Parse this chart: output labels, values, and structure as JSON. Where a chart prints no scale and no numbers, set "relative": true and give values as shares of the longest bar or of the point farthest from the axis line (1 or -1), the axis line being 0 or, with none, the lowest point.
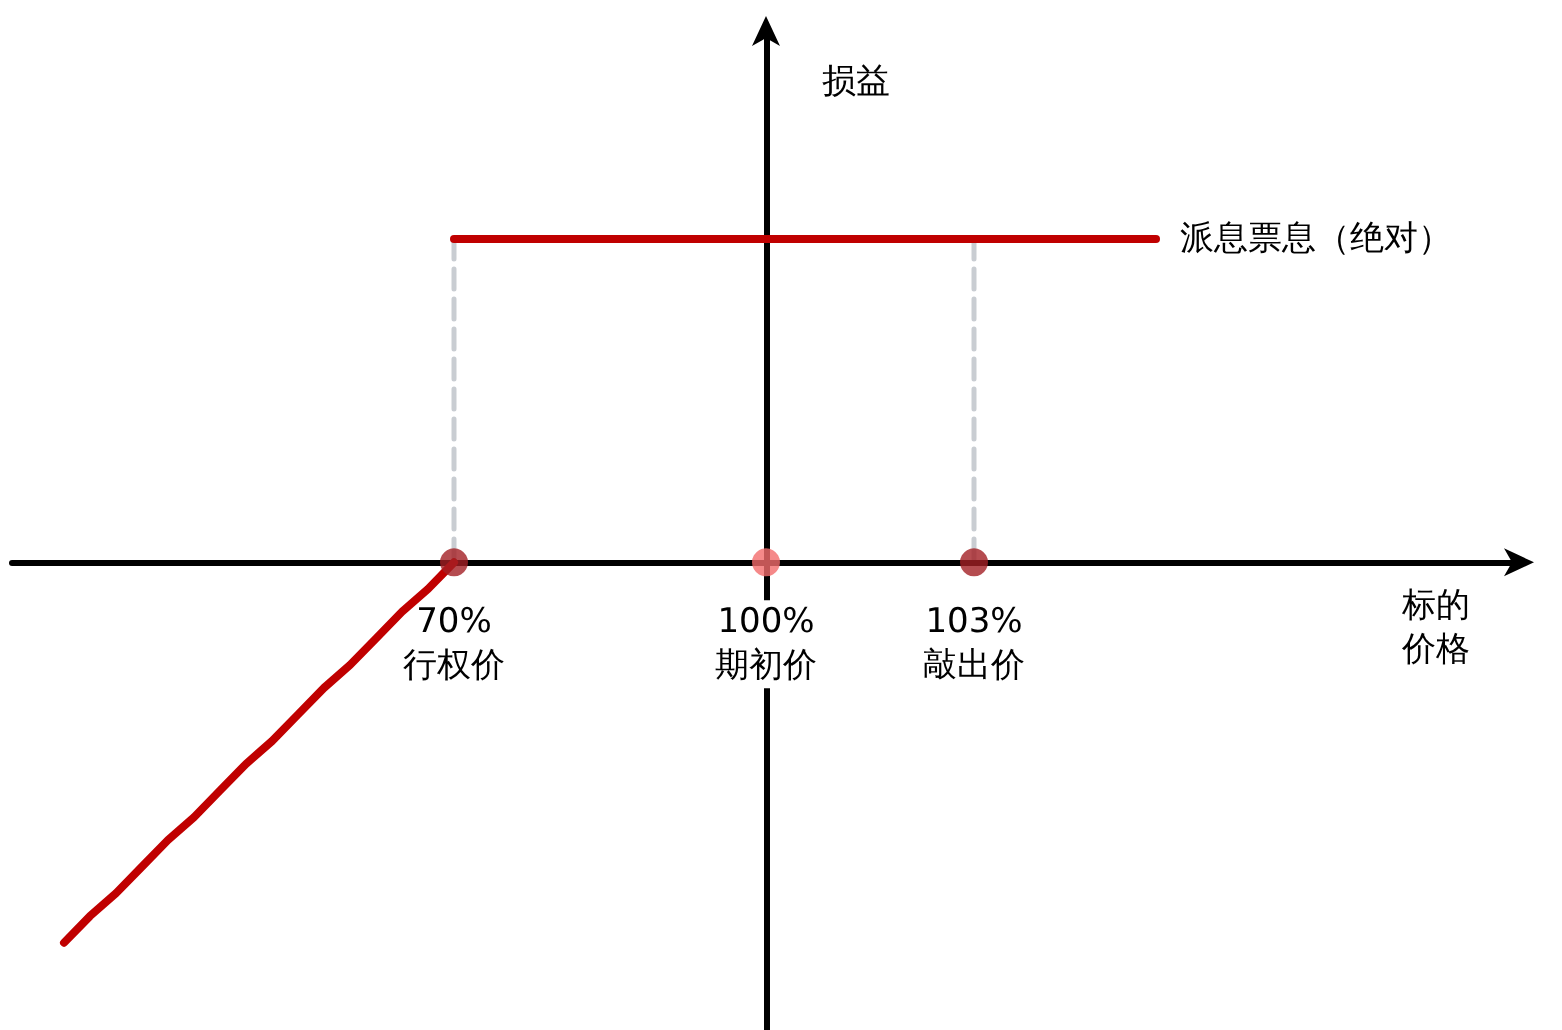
{
  "chart_data": {
    "type": "line",
    "relative": true,
    "legend": false,
    "grid": false,
    "xlabel": "标的价格",
    "ylabel": "损益",
    "categories": [
      null,
      null,
      null,
      null,
      null,
      null,
      null,
      null,
      null,
      null,
      null,
      null,
      null,
      null,
      null,
      null,
      null,
      "70%\n行权价",
      null,
      null,
      null,
      null,
      null,
      null,
      null,
      null,
      null,
      null,
      null,
      "100%\n期初价",
      null,
      null,
      null,
      null,
      null,
      null,
      null,
      "103%\n敲出价",
      null,
      null,
      null,
      null,
      null,
      null,
      null,
      null,
      null,
      null,
      null,
      null,
      null,
      null,
      null,
      null,
      null,
      null,
      null,
      null,
      null
    ],
    "series": [
      {
        "x": [
          "70%\n行权价",
          "70%\n行权价"
        ],
        "values": [
          0.85,
          0
        ],
        "color": "#c9cdd2",
        "line_style": "dashed"
      },
      {
        "x": [
          "103%\n敲出价",
          "103%\n敲出价"
        ],
        "values": [
          0.85,
          0
        ],
        "color": "#c9cdd2",
        "line_style": "dashed"
      },
      {
        "color": "#c00000",
        "values": [
          null,
          null,
          -1,
          -0.93,
          -0.87,
          -0.8,
          -0.73,
          -0.67,
          -0.6,
          -0.53,
          -0.47,
          -0.4,
          -0.33,
          -0.27,
          -0.2,
          -0.13,
          -0.07,
          0,
          null,
          null,
          null,
          null,
          null,
          null,
          null,
          null,
          null,
          null,
          null,
          null,
          null,
          null,
          null,
          null,
          null,
          null,
          null,
          null,
          null,
          null,
          null,
          null,
          null,
          null,
          null,
          null,
          null,
          null,
          null,
          null,
          null,
          null,
          null,
          null,
          null,
          null,
          null,
          null,
          null
        ]
      },
      {
        "name": "派息票息（绝对）",
        "color": "#c00000",
        "values": [
          null,
          null,
          null,
          null,
          null,
          null,
          null,
          null,
          null,
          null,
          null,
          null,
          null,
          null,
          null,
          null,
          null,
          0.85,
          0.85,
          0.85,
          0.85,
          0.85,
          0.85,
          0.85,
          0.85,
          0.85,
          0.85,
          0.85,
          0.85,
          0.85,
          0.85,
          0.85,
          0.85,
          0.85,
          0.85,
          0.85,
          0.85,
          0.85,
          0.85,
          0.85,
          0.85,
          0.85,
          0.85,
          0.85,
          0.85,
          null,
          null,
          null,
          null,
          null,
          null,
          null,
          null,
          null,
          null,
          null,
          null,
          null,
          null
        ]
      },
      {
        "type": "scatter",
        "marker": "circle",
        "x": [
          "70%\n行权价",
          "100%\n期初价",
          "103%\n敲出价"
        ],
        "values": [
          0,
          0,
          0
        ],
        "colors": [
          "#a31f24",
          "#f26b6b",
          "#a31f24"
        ]
      }
    ]
  }
}
